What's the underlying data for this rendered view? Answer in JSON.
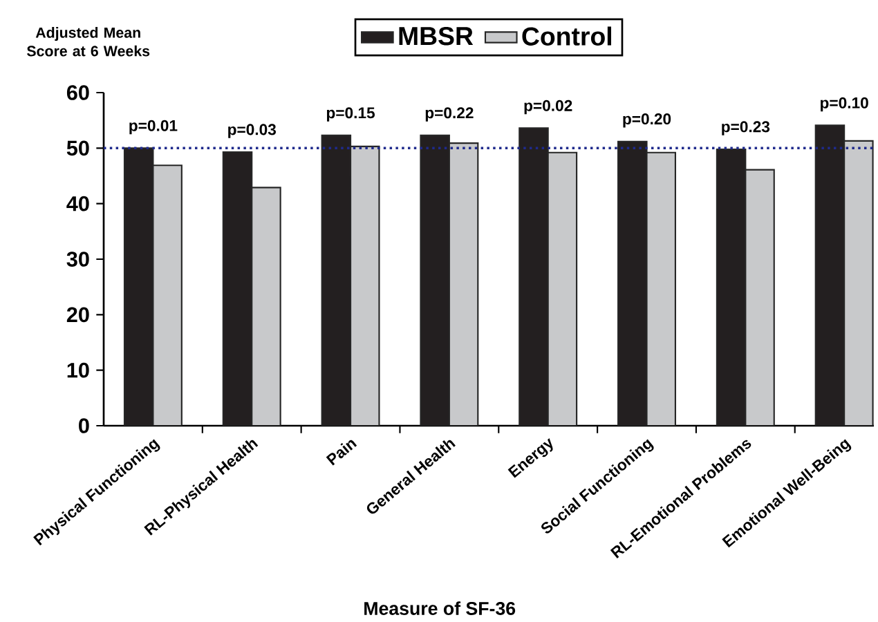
{
  "chart_data": {
    "type": "bar",
    "ylabel": "Adjusted Mean Score at 6 Weeks",
    "xlabel": "Measure of SF-36",
    "categories": [
      "Physical Functioning",
      "RL-Physical Health",
      "Pain",
      "General Health",
      "Energy",
      "Social Functioning",
      "RL-Emotional Problems",
      "Emotional Well-Being"
    ],
    "series": [
      {
        "name": "MBSR",
        "color": "#231f20",
        "values": [
          50.0,
          49.3,
          52.3,
          52.3,
          53.6,
          51.2,
          49.8,
          54.1
        ]
      },
      {
        "name": "Control",
        "color": "#c8c9cb",
        "values": [
          46.9,
          42.9,
          50.3,
          50.9,
          49.2,
          49.2,
          46.1,
          51.3
        ]
      }
    ],
    "ylim": [
      0,
      60
    ],
    "yticks": [
      0,
      10,
      20,
      30,
      40,
      50,
      60
    ],
    "ref_lines": [
      {
        "axis": "y",
        "value": 50,
        "color": "#1f2a8c",
        "line_style": "dotted"
      }
    ],
    "annotations": [
      {
        "text": "p=0.01",
        "x": "Physical Functioning",
        "y": 50.0
      },
      {
        "text": "p=0.03",
        "x": "RL-Physical Health",
        "y": 49.3
      },
      {
        "text": "p=0.15",
        "x": "Pain",
        "y": 52.3
      },
      {
        "text": "p=0.22",
        "x": "General Health",
        "y": 52.3
      },
      {
        "text": "p=0.02",
        "x": "Energy",
        "y": 53.6
      },
      {
        "text": "p=0.20",
        "x": "Social Functioning",
        "y": 51.2
      },
      {
        "text": "p=0.23",
        "x": "RL-Emotional Problems",
        "y": 49.8
      },
      {
        "text": "p=0.10",
        "x": "Emotional Well-Being",
        "y": 54.1
      }
    ],
    "legend": "top",
    "grid": false
  }
}
